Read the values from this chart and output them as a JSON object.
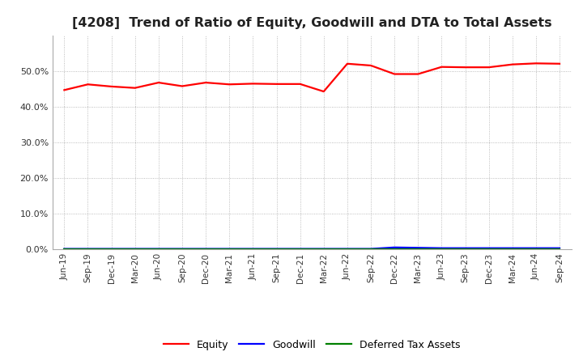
{
  "title": "[4208]  Trend of Ratio of Equity, Goodwill and DTA to Total Assets",
  "title_fontsize": 11.5,
  "ylim": [
    0.0,
    0.6
  ],
  "yticks": [
    0.0,
    0.1,
    0.2,
    0.3,
    0.4,
    0.5
  ],
  "background_color": "#ffffff",
  "plot_bg_color": "#ffffff",
  "grid_color": "#aaaaaa",
  "labels": [
    "Jun-19",
    "Sep-19",
    "Dec-19",
    "Mar-20",
    "Jun-20",
    "Sep-20",
    "Dec-20",
    "Mar-21",
    "Jun-21",
    "Sep-21",
    "Dec-21",
    "Mar-22",
    "Jun-22",
    "Sep-22",
    "Dec-22",
    "Mar-23",
    "Jun-23",
    "Sep-23",
    "Dec-23",
    "Mar-24",
    "Jun-24",
    "Sep-24"
  ],
  "equity": [
    0.447,
    0.463,
    0.457,
    0.453,
    0.468,
    0.458,
    0.468,
    0.463,
    0.465,
    0.464,
    0.464,
    0.443,
    0.521,
    0.516,
    0.492,
    0.492,
    0.512,
    0.511,
    0.511,
    0.519,
    0.522,
    0.521
  ],
  "goodwill": [
    0.001,
    0.001,
    0.001,
    0.001,
    0.001,
    0.001,
    0.001,
    0.001,
    0.001,
    0.001,
    0.001,
    0.001,
    0.001,
    0.001,
    0.005,
    0.004,
    0.003,
    0.003,
    0.003,
    0.003,
    0.003,
    0.003
  ],
  "dta": [
    0.001,
    0.001,
    0.001,
    0.001,
    0.001,
    0.001,
    0.001,
    0.001,
    0.001,
    0.001,
    0.001,
    0.001,
    0.001,
    0.001,
    0.001,
    0.001,
    0.001,
    0.001,
    0.001,
    0.001,
    0.001,
    0.001
  ],
  "equity_color": "#ff0000",
  "goodwill_color": "#0000ff",
  "dta_color": "#008000",
  "line_width": 1.6,
  "legend_labels": [
    "Equity",
    "Goodwill",
    "Deferred Tax Assets"
  ]
}
